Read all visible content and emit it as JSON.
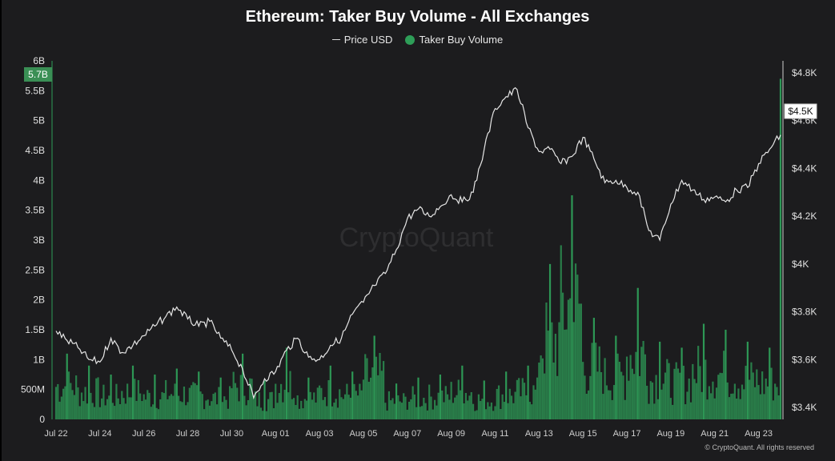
{
  "chart_data": {
    "type": "bar",
    "title": "Ethereum: Taker Buy Volume - All Exchanges",
    "legend": [
      "Price USD",
      "Taker Buy Volume"
    ],
    "legend_position": "top-center",
    "watermark": "CryptoQuant",
    "copyright": "© CryptoQuant. All rights reserved",
    "colors": {
      "background": "#1c1c1e",
      "volume": "#2e9e58",
      "price": "#e6e6e6",
      "badge_left": "#3a8f55"
    },
    "y_left": {
      "label": "",
      "ylim": [
        0,
        6000000000
      ],
      "ticks": [
        "6B",
        "5.5B",
        "5B",
        "4.5B",
        "4B",
        "3.5B",
        "3B",
        "2.5B",
        "2B",
        "1.5B",
        "1B",
        "500M",
        "0"
      ]
    },
    "y_right": {
      "label": "",
      "ylim": [
        3350,
        4850
      ],
      "ticks": [
        "$4.8K",
        "$4.6K",
        "$4.4K",
        "$4.2K",
        "$4K",
        "$3.8K",
        "$3.6K",
        "$3.4K"
      ]
    },
    "x_ticks": [
      "Jul 22",
      "Jul 24",
      "Jul 26",
      "Jul 28",
      "Jul 30",
      "Aug 01",
      "Aug 03",
      "Aug 05",
      "Aug 07",
      "Aug 09",
      "Aug 11",
      "Aug 13",
      "Aug 15",
      "Aug 17",
      "Aug 19",
      "Aug 21",
      "Aug 23"
    ],
    "latest_volume_label": "5.7B",
    "latest_price_label": "$4.5K",
    "grid": false,
    "price_series": {
      "name": "Price USD",
      "x_days": [
        0,
        0.5,
        1,
        1.5,
        2,
        2.5,
        3,
        3.5,
        4,
        4.5,
        5,
        5.5,
        6,
        6.5,
        7,
        7.5,
        8,
        8.5,
        9,
        9.5,
        10,
        10.5,
        11,
        11.5,
        12,
        12.5,
        13,
        13.5,
        14,
        14.5,
        15,
        15.5,
        16,
        16.5,
        17,
        17.5,
        18,
        18.5,
        19,
        19.5,
        20,
        20.5,
        21,
        21.5,
        22,
        22.5,
        23,
        23.5,
        24,
        24.5,
        25,
        25.5,
        26,
        26.5,
        27,
        27.5,
        28,
        28.5,
        29,
        29.5,
        30,
        30.5,
        31,
        31.5,
        32,
        32.5,
        33
      ],
      "values": [
        3720,
        3680,
        3650,
        3600,
        3590,
        3690,
        3630,
        3660,
        3700,
        3740,
        3780,
        3820,
        3770,
        3740,
        3760,
        3690,
        3640,
        3560,
        3440,
        3520,
        3550,
        3640,
        3690,
        3610,
        3600,
        3660,
        3690,
        3790,
        3840,
        3910,
        3960,
        4060,
        4190,
        4230,
        4200,
        4240,
        4290,
        4260,
        4300,
        4480,
        4650,
        4700,
        4730,
        4570,
        4470,
        4480,
        4420,
        4450,
        4530,
        4440,
        4340,
        4350,
        4320,
        4300,
        4140,
        4100,
        4250,
        4350,
        4310,
        4270,
        4280,
        4260,
        4310,
        4320,
        4420,
        4480,
        4540
      ]
    },
    "volume_series": {
      "name": "Taker Buy Volume",
      "x_days": [
        0,
        1,
        2,
        3,
        4,
        5,
        6,
        7,
        8,
        9,
        10,
        11,
        12,
        13,
        14,
        15,
        16,
        17,
        18,
        19,
        20,
        21,
        22,
        23,
        24,
        25,
        26,
        27,
        28,
        29,
        30,
        31,
        32,
        33
      ],
      "values": [
        1100000000,
        900000000,
        750000000,
        900000000,
        750000000,
        850000000,
        800000000,
        700000000,
        1100000000,
        650000000,
        1200000000,
        700000000,
        900000000,
        800000000,
        1400000000,
        600000000,
        700000000,
        750000000,
        900000000,
        650000000,
        800000000,
        900000000,
        2600000000,
        3750000000,
        1700000000,
        1400000000,
        2200000000,
        1300000000,
        1200000000,
        1600000000,
        1500000000,
        1300000000,
        1200000000,
        5700000000
      ]
    }
  }
}
